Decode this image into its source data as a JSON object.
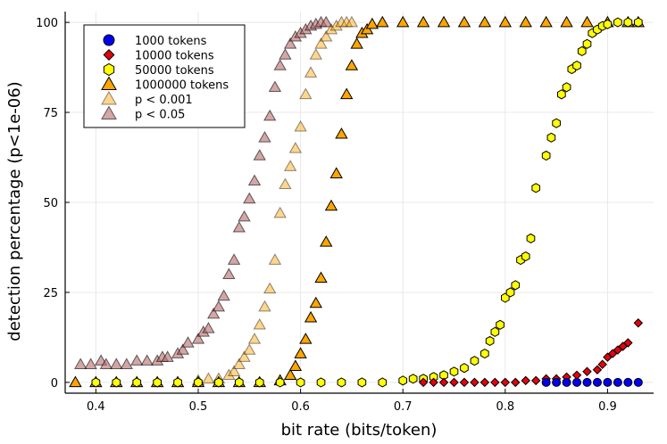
{
  "chart_data": {
    "type": "scatter",
    "xlabel": "bit rate (bits/token)",
    "ylabel": "detection percentage (p<1e-06)",
    "xlim": [
      0.37,
      0.945
    ],
    "ylim": [
      -3,
      103
    ],
    "xticks": [
      0.4,
      0.5,
      0.6,
      0.7,
      0.8,
      0.9
    ],
    "xtick_labels": [
      "0.4",
      "0.5",
      "0.6",
      "0.7",
      "0.8",
      "0.9"
    ],
    "yticks": [
      0,
      25,
      50,
      75,
      100
    ],
    "ytick_labels": [
      "0",
      "25",
      "50",
      "75",
      "100"
    ],
    "grid": true,
    "legend_position": "top-left",
    "series": [
      {
        "name": "1000 tokens",
        "marker": "circle",
        "color": "#0000ee",
        "opacity": 1,
        "points": [
          [
            0.84,
            0
          ],
          [
            0.85,
            0
          ],
          [
            0.86,
            0
          ],
          [
            0.87,
            0
          ],
          [
            0.88,
            0
          ],
          [
            0.89,
            0
          ],
          [
            0.9,
            0
          ],
          [
            0.91,
            0
          ],
          [
            0.92,
            0
          ],
          [
            0.93,
            0
          ]
        ]
      },
      {
        "name": "10000 tokens",
        "marker": "diamond",
        "color": "#e8000b",
        "opacity": 1,
        "points": [
          [
            0.72,
            0
          ],
          [
            0.73,
            0
          ],
          [
            0.74,
            0
          ],
          [
            0.75,
            0
          ],
          [
            0.76,
            0
          ],
          [
            0.77,
            0
          ],
          [
            0.78,
            0
          ],
          [
            0.79,
            0
          ],
          [
            0.8,
            0
          ],
          [
            0.81,
            0
          ],
          [
            0.82,
            0.5
          ],
          [
            0.83,
            0.5
          ],
          [
            0.84,
            1
          ],
          [
            0.85,
            1
          ],
          [
            0.86,
            1.5
          ],
          [
            0.87,
            2
          ],
          [
            0.88,
            3
          ],
          [
            0.89,
            3.5
          ],
          [
            0.895,
            5
          ],
          [
            0.9,
            7
          ],
          [
            0.905,
            8
          ],
          [
            0.91,
            9
          ],
          [
            0.915,
            10
          ],
          [
            0.92,
            11
          ],
          [
            0.93,
            16.5
          ]
        ]
      },
      {
        "name": "50000 tokens",
        "marker": "hexagon",
        "color": "#ffff00",
        "opacity": 1,
        "points": [
          [
            0.4,
            0
          ],
          [
            0.42,
            0
          ],
          [
            0.44,
            0
          ],
          [
            0.46,
            0
          ],
          [
            0.48,
            0
          ],
          [
            0.5,
            0
          ],
          [
            0.52,
            0
          ],
          [
            0.54,
            0
          ],
          [
            0.56,
            0
          ],
          [
            0.58,
            0
          ],
          [
            0.6,
            0
          ],
          [
            0.62,
            0
          ],
          [
            0.64,
            0
          ],
          [
            0.66,
            0
          ],
          [
            0.68,
            0
          ],
          [
            0.7,
            0.5
          ],
          [
            0.71,
            1
          ],
          [
            0.72,
            1
          ],
          [
            0.73,
            1.5
          ],
          [
            0.74,
            2
          ],
          [
            0.75,
            3
          ],
          [
            0.76,
            4
          ],
          [
            0.77,
            6
          ],
          [
            0.78,
            8
          ],
          [
            0.785,
            11.5
          ],
          [
            0.79,
            14
          ],
          [
            0.795,
            16
          ],
          [
            0.8,
            23.5
          ],
          [
            0.805,
            25
          ],
          [
            0.81,
            27
          ],
          [
            0.815,
            34
          ],
          [
            0.82,
            35
          ],
          [
            0.825,
            40
          ],
          [
            0.83,
            54
          ],
          [
            0.84,
            63
          ],
          [
            0.845,
            68
          ],
          [
            0.85,
            72
          ],
          [
            0.855,
            80
          ],
          [
            0.86,
            82
          ],
          [
            0.865,
            87
          ],
          [
            0.87,
            88
          ],
          [
            0.875,
            92
          ],
          [
            0.88,
            94
          ],
          [
            0.885,
            97
          ],
          [
            0.89,
            98
          ],
          [
            0.895,
            99
          ],
          [
            0.9,
            99.5
          ],
          [
            0.91,
            100
          ],
          [
            0.92,
            100
          ],
          [
            0.93,
            100
          ]
        ]
      },
      {
        "name": "1000000 tokens",
        "marker": "triangle",
        "color": "#ffa500",
        "opacity": 1,
        "points": [
          [
            0.38,
            0
          ],
          [
            0.4,
            0
          ],
          [
            0.42,
            0
          ],
          [
            0.44,
            0
          ],
          [
            0.46,
            0
          ],
          [
            0.48,
            0
          ],
          [
            0.5,
            0
          ],
          [
            0.52,
            0
          ],
          [
            0.54,
            0
          ],
          [
            0.56,
            0
          ],
          [
            0.58,
            0.5
          ],
          [
            0.59,
            2
          ],
          [
            0.595,
            4.5
          ],
          [
            0.6,
            8
          ],
          [
            0.605,
            12
          ],
          [
            0.61,
            18
          ],
          [
            0.615,
            22
          ],
          [
            0.62,
            29
          ],
          [
            0.625,
            39
          ],
          [
            0.63,
            49
          ],
          [
            0.635,
            58
          ],
          [
            0.64,
            69
          ],
          [
            0.645,
            80
          ],
          [
            0.65,
            88
          ],
          [
            0.655,
            94
          ],
          [
            0.66,
            97
          ],
          [
            0.665,
            98
          ],
          [
            0.67,
            99.5
          ],
          [
            0.68,
            100
          ],
          [
            0.7,
            100
          ],
          [
            0.72,
            100
          ],
          [
            0.74,
            100
          ],
          [
            0.76,
            100
          ],
          [
            0.78,
            100
          ],
          [
            0.8,
            100
          ],
          [
            0.82,
            100
          ],
          [
            0.84,
            100
          ],
          [
            0.86,
            100
          ],
          [
            0.88,
            100
          ],
          [
            0.9,
            100
          ],
          [
            0.92,
            100
          ],
          [
            0.93,
            100
          ]
        ]
      },
      {
        "name": "p < 0.001",
        "marker": "triangle",
        "color": "#ffa500",
        "opacity": 0.45,
        "points": [
          [
            0.38,
            0
          ],
          [
            0.4,
            0
          ],
          [
            0.42,
            0
          ],
          [
            0.44,
            0
          ],
          [
            0.46,
            0
          ],
          [
            0.48,
            0
          ],
          [
            0.5,
            0.5
          ],
          [
            0.51,
            1
          ],
          [
            0.52,
            1
          ],
          [
            0.53,
            2
          ],
          [
            0.535,
            3
          ],
          [
            0.54,
            5
          ],
          [
            0.545,
            7
          ],
          [
            0.55,
            9
          ],
          [
            0.555,
            12
          ],
          [
            0.56,
            16
          ],
          [
            0.565,
            21
          ],
          [
            0.57,
            26
          ],
          [
            0.575,
            34
          ],
          [
            0.58,
            47
          ],
          [
            0.585,
            55
          ],
          [
            0.59,
            60
          ],
          [
            0.595,
            65
          ],
          [
            0.6,
            71
          ],
          [
            0.605,
            80
          ],
          [
            0.61,
            86
          ],
          [
            0.615,
            91
          ],
          [
            0.62,
            94
          ],
          [
            0.625,
            96
          ],
          [
            0.63,
            98
          ],
          [
            0.635,
            99
          ],
          [
            0.64,
            100
          ],
          [
            0.645,
            100
          ],
          [
            0.65,
            100
          ]
        ]
      },
      {
        "name": "p < 0.05",
        "marker": "triangle",
        "color": "#b86a6a",
        "opacity": 0.6,
        "points": [
          [
            0.385,
            5
          ],
          [
            0.395,
            5
          ],
          [
            0.405,
            6
          ],
          [
            0.41,
            5
          ],
          [
            0.42,
            5
          ],
          [
            0.43,
            5
          ],
          [
            0.44,
            6
          ],
          [
            0.45,
            6
          ],
          [
            0.46,
            6
          ],
          [
            0.465,
            7
          ],
          [
            0.47,
            7
          ],
          [
            0.48,
            8
          ],
          [
            0.485,
            9
          ],
          [
            0.49,
            11
          ],
          [
            0.5,
            12
          ],
          [
            0.505,
            14
          ],
          [
            0.51,
            15
          ],
          [
            0.515,
            19
          ],
          [
            0.52,
            21
          ],
          [
            0.525,
            24
          ],
          [
            0.53,
            30
          ],
          [
            0.535,
            34
          ],
          [
            0.54,
            43
          ],
          [
            0.545,
            46
          ],
          [
            0.55,
            51
          ],
          [
            0.555,
            56
          ],
          [
            0.56,
            63
          ],
          [
            0.565,
            68
          ],
          [
            0.57,
            74
          ],
          [
            0.575,
            82
          ],
          [
            0.58,
            88
          ],
          [
            0.585,
            91
          ],
          [
            0.59,
            94
          ],
          [
            0.595,
            96
          ],
          [
            0.6,
            97
          ],
          [
            0.605,
            98
          ],
          [
            0.61,
            99
          ],
          [
            0.615,
            99.5
          ],
          [
            0.62,
            100
          ],
          [
            0.625,
            100
          ]
        ]
      }
    ]
  }
}
